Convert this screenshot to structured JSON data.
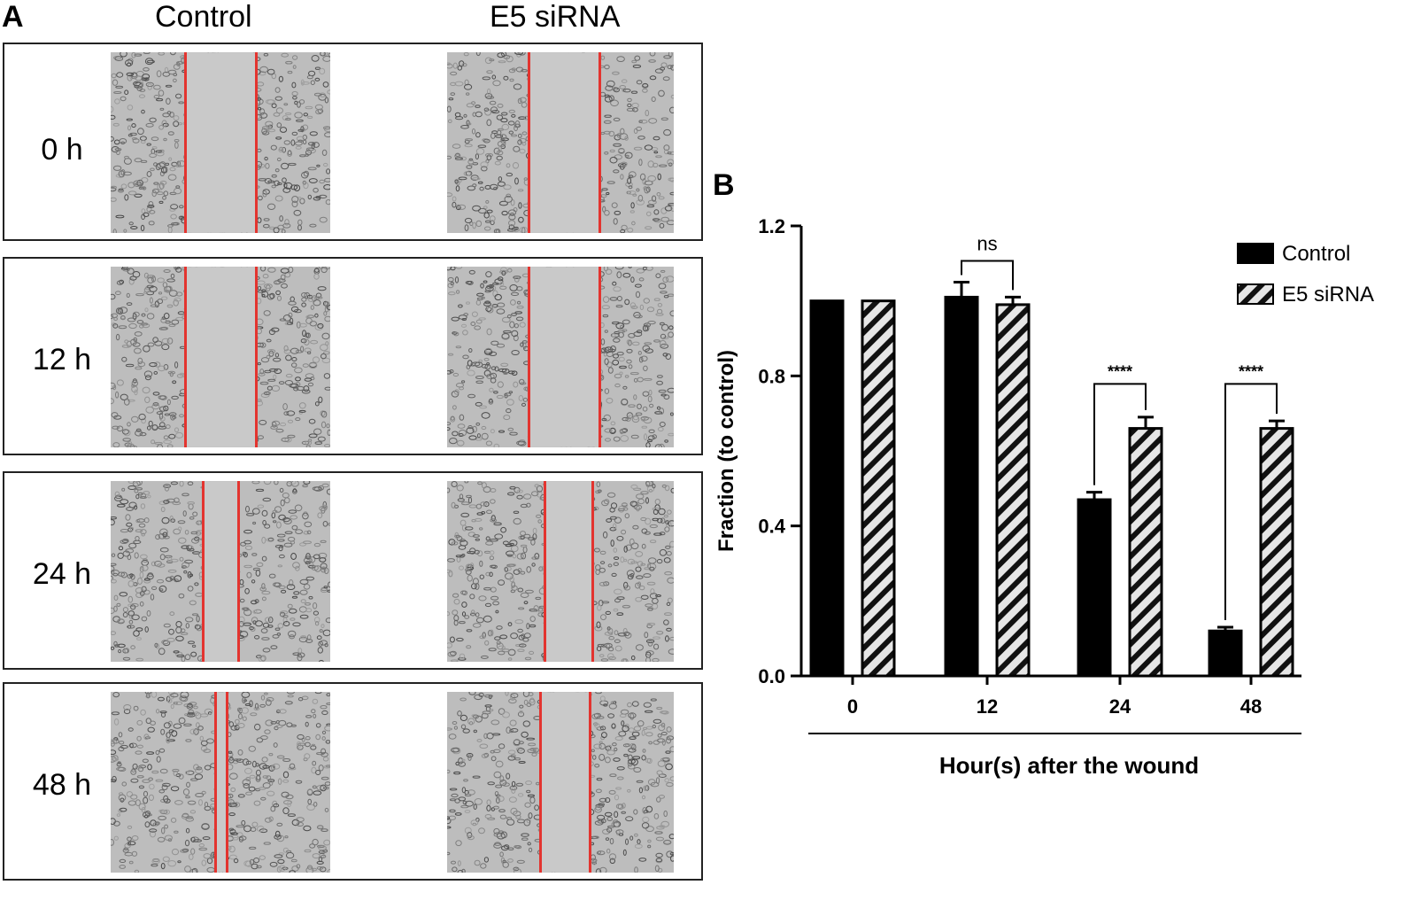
{
  "panelA": {
    "letter": "A",
    "columns": [
      "Control",
      "E5 siRNA"
    ],
    "rows": [
      {
        "label": "0 h",
        "control_gap": [
          0.34,
          0.66
        ],
        "sirna_gap": [
          0.36,
          0.67
        ]
      },
      {
        "label": "12 h",
        "control_gap": [
          0.34,
          0.66
        ],
        "sirna_gap": [
          0.36,
          0.67
        ]
      },
      {
        "label": "24 h",
        "control_gap": [
          0.42,
          0.58
        ],
        "sirna_gap": [
          0.43,
          0.64
        ]
      },
      {
        "label": "48 h",
        "control_gap": [
          0.475,
          0.53
        ],
        "sirna_gap": [
          0.41,
          0.63
        ]
      }
    ]
  },
  "panelB": {
    "letter": "B"
  },
  "chart_data": {
    "type": "bar",
    "categories": [
      "0",
      "12",
      "24",
      "48"
    ],
    "series": [
      {
        "name": "Control",
        "values": [
          1.0,
          1.01,
          0.47,
          0.12
        ],
        "errors": [
          0.0,
          0.04,
          0.02,
          0.01
        ],
        "fill": "#000000"
      },
      {
        "name": "E5 siRNA",
        "values": [
          1.0,
          0.99,
          0.66,
          0.66
        ],
        "errors": [
          0.0,
          0.02,
          0.03,
          0.02
        ],
        "fill": "hatched"
      }
    ],
    "xlabel": "Hour(s) after the wound",
    "ylabel": "Fraction (to control)",
    "ylim": [
      0,
      1.2
    ],
    "yticks": [
      "0.0",
      "0.4",
      "0.8",
      "1.2"
    ],
    "significance": [
      "",
      "ns",
      "****",
      "****"
    ],
    "legend_position": "top-right",
    "grid": false
  }
}
